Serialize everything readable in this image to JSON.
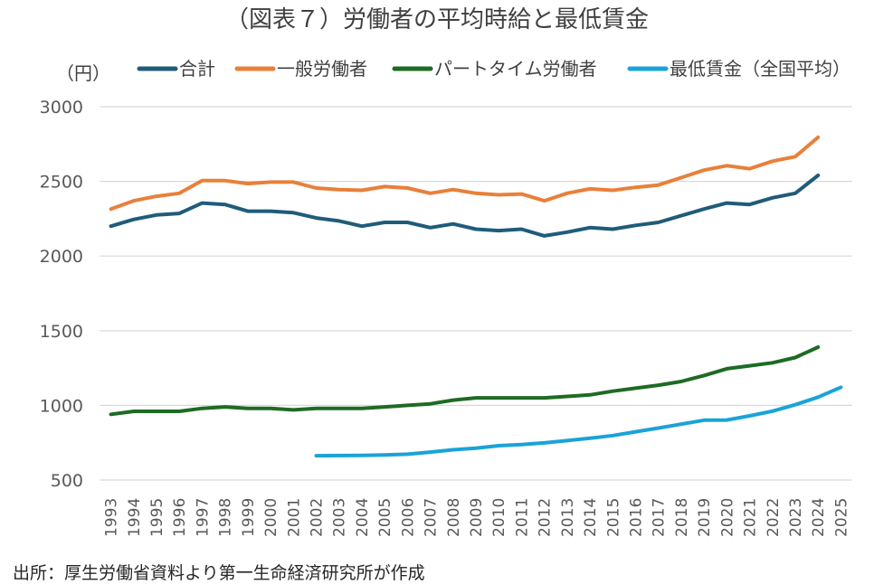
{
  "chart_data": {
    "type": "line",
    "title": "（図表７）労働者の平均時給と最低賃金",
    "ylabel": "（円）",
    "xlabel": "",
    "ylim": [
      500,
      3000
    ],
    "yticks": [
      "3000",
      "2500",
      "2000",
      "1500",
      "1000",
      "500"
    ],
    "ytick_values": [
      3000,
      2500,
      2000,
      1500,
      1000,
      500
    ],
    "grid": true,
    "legend_position": "top",
    "x": [
      "1993",
      "1994",
      "1995",
      "1996",
      "1997",
      "1998",
      "1999",
      "2000",
      "2001",
      "2002",
      "2003",
      "2004",
      "2005",
      "2006",
      "2007",
      "2008",
      "2009",
      "2010",
      "2011",
      "2012",
      "2013",
      "2014",
      "2015",
      "2016",
      "2017",
      "2018",
      "2019",
      "2020",
      "2021",
      "2022",
      "2023",
      "2024",
      "2025"
    ],
    "series": [
      {
        "name": "合計",
        "color": "#1f5c7a",
        "values": [
          2200,
          2245,
          2275,
          2285,
          2355,
          2345,
          2300,
          2300,
          2290,
          2255,
          2235,
          2200,
          2225,
          2225,
          2190,
          2215,
          2180,
          2170,
          2180,
          2135,
          2160,
          2190,
          2180,
          2205,
          2225,
          2270,
          2315,
          2355,
          2345,
          2390,
          2420,
          2540,
          null
        ]
      },
      {
        "name": "一般労働者",
        "color": "#e8803a",
        "values": [
          2315,
          2370,
          2400,
          2420,
          2505,
          2505,
          2485,
          2495,
          2495,
          2455,
          2445,
          2440,
          2465,
          2455,
          2420,
          2445,
          2420,
          2410,
          2415,
          2370,
          2420,
          2450,
          2440,
          2460,
          2475,
          2525,
          2575,
          2605,
          2585,
          2635,
          2665,
          2795,
          null
        ]
      },
      {
        "name": "パートタイム労働者",
        "color": "#1e6b24",
        "values": [
          940,
          960,
          960,
          960,
          980,
          990,
          980,
          980,
          970,
          980,
          980,
          980,
          990,
          1000,
          1010,
          1035,
          1050,
          1050,
          1050,
          1050,
          1060,
          1070,
          1095,
          1115,
          1135,
          1160,
          1200,
          1245,
          1265,
          1285,
          1320,
          1390,
          null
        ]
      },
      {
        "name": "最低賃金（全国平均）",
        "color": "#1aa3d8",
        "values": [
          null,
          null,
          null,
          null,
          null,
          null,
          null,
          null,
          null,
          663,
          664,
          665,
          668,
          673,
          687,
          703,
          713,
          730,
          737,
          749,
          764,
          780,
          798,
          823,
          848,
          874,
          901,
          902,
          930,
          961,
          1004,
          1055,
          1121
        ]
      }
    ],
    "source": "出所：厚生労働省資料より第一生命経済研究所が作成"
  }
}
